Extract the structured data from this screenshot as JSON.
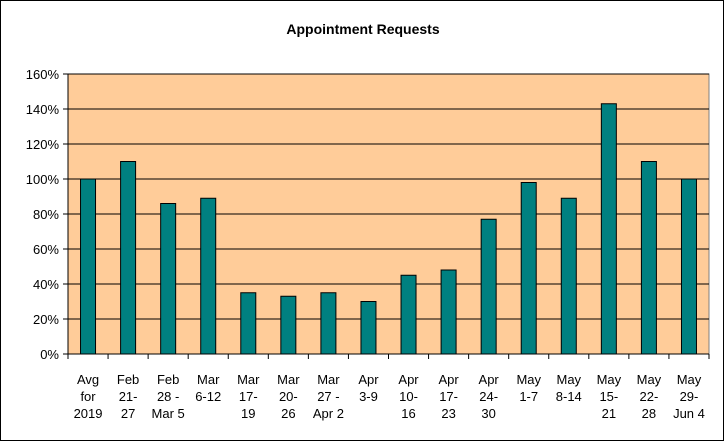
{
  "chart_data": {
    "type": "bar",
    "title": "Appointment Requests",
    "xlabel": "",
    "ylabel": "",
    "ylim": [
      0,
      160
    ],
    "y_ticks": [
      "0%",
      "20%",
      "40%",
      "60%",
      "80%",
      "100%",
      "120%",
      "140%",
      "160%"
    ],
    "y_tick_values": [
      0,
      20,
      40,
      60,
      80,
      100,
      120,
      140,
      160
    ],
    "grid": true,
    "legend": "none",
    "colors": {
      "plot_background": "#FFCC99",
      "bar_fill": "#008080",
      "bar_stroke": "#000000",
      "gridline": "#000000"
    },
    "categories": [
      [
        "Avg",
        "for",
        "2019"
      ],
      [
        "Feb",
        "21-",
        "27"
      ],
      [
        "Feb",
        "28 -",
        "Mar 5"
      ],
      [
        "Mar",
        "6-12"
      ],
      [
        "Mar",
        "17-",
        "19"
      ],
      [
        "Mar",
        "20-",
        "26"
      ],
      [
        "Mar",
        "27 -",
        "Apr 2"
      ],
      [
        "Apr",
        "3-9"
      ],
      [
        "Apr",
        "10-",
        "16"
      ],
      [
        "Apr",
        "17-",
        "23"
      ],
      [
        "Apr",
        "24-",
        "30"
      ],
      [
        "May",
        "1-7"
      ],
      [
        "May",
        "8-14"
      ],
      [
        "May",
        "15-",
        "21"
      ],
      [
        "May",
        "22-",
        "28"
      ],
      [
        "May",
        "29-",
        "Jun 4"
      ]
    ],
    "values": [
      100,
      110,
      86,
      89,
      35,
      33,
      35,
      30,
      45,
      48,
      77,
      98,
      89,
      143,
      110,
      100
    ]
  }
}
